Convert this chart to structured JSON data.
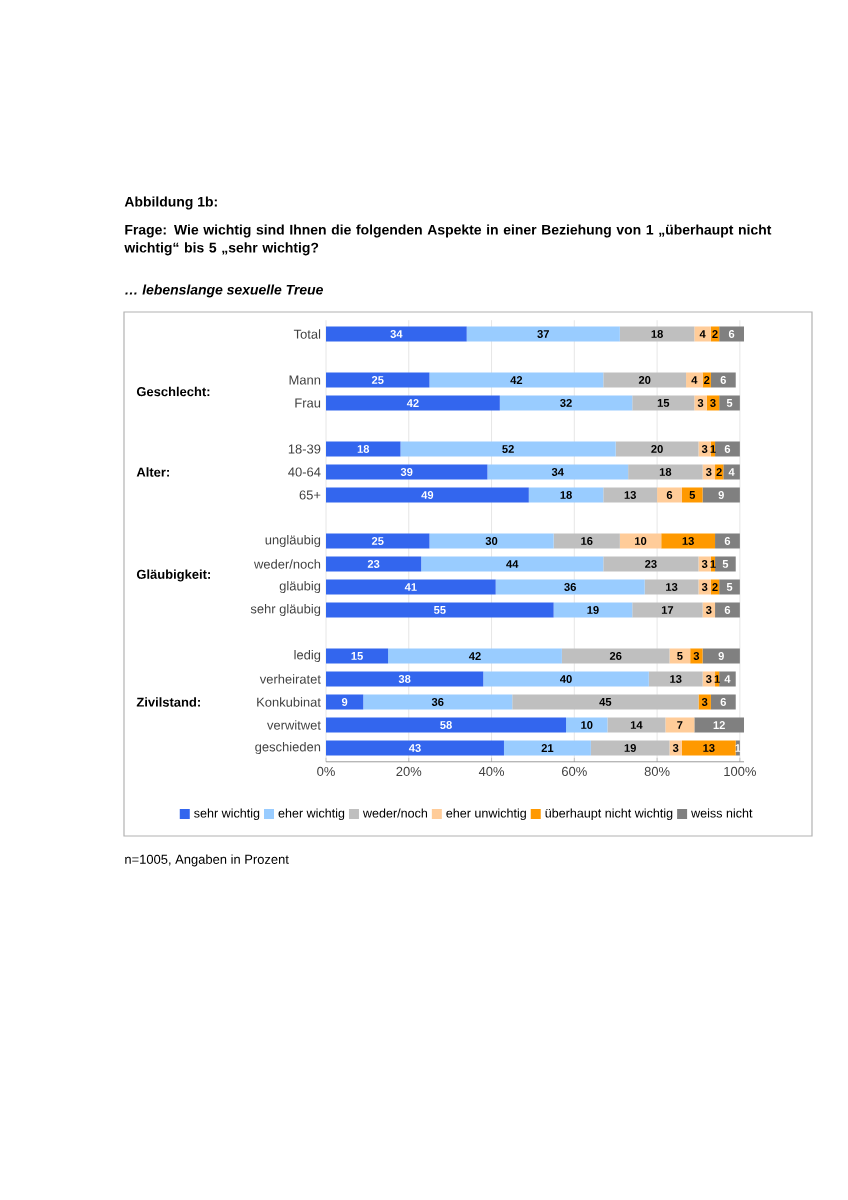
{
  "chart_data": {
    "type": "bar",
    "orientation": "horizontal",
    "stacked": true,
    "title": "Abbildung 1b:",
    "subtitle": "Frage: Wie wichtig sind Ihnen die folgenden Aspekte in einer Beziehung von 1 „überhaupt nicht wichtig“ bis 5 „sehr wichtig?",
    "annotations": [
      "… lebenslange sexuelle Treue",
      "Geschlecht:",
      "Alter:",
      "Gläubigkeit:",
      "Zivilstand:",
      "n=1005, Angaben in Prozent"
    ],
    "categories": [
      "Total",
      null,
      "Mann",
      "Frau",
      null,
      "18-39",
      "40-64",
      "65+",
      null,
      "ungläubig",
      "weder/noch",
      "gläubig",
      "sehr gläubig",
      null,
      "ledig",
      "verheiratet",
      "Konkubinat",
      "verwitwet",
      "geschieden"
    ],
    "series": [
      {
        "name": "sehr wichtig",
        "color": "#3366ee",
        "values": [
          34,
          null,
          25,
          42,
          null,
          18,
          39,
          49,
          null,
          25,
          23,
          41,
          55,
          null,
          15,
          38,
          9,
          58,
          43
        ]
      },
      {
        "name": "eher wichtig",
        "color": "#99ccff",
        "values": [
          37,
          null,
          42,
          32,
          null,
          52,
          34,
          18,
          null,
          30,
          44,
          36,
          19,
          null,
          42,
          40,
          36,
          10,
          21
        ]
      },
      {
        "name": "weder/noch",
        "color": "#bfbfbf",
        "values": [
          18,
          null,
          20,
          15,
          null,
          20,
          18,
          13,
          null,
          16,
          23,
          13,
          17,
          null,
          26,
          13,
          45,
          14,
          19
        ]
      },
      {
        "name": "eher unwichtig",
        "color": "#ffcc99",
        "values": [
          4,
          null,
          4,
          3,
          null,
          3,
          3,
          6,
          null,
          10,
          3,
          3,
          3,
          null,
          5,
          3,
          null,
          7,
          3
        ]
      },
      {
        "name": "überhaupt nicht wichtig",
        "color": "#ff9900",
        "values": [
          2,
          null,
          2,
          3,
          null,
          1,
          2,
          5,
          null,
          13,
          1,
          2,
          null,
          null,
          3,
          1,
          3,
          null,
          13
        ]
      },
      {
        "name": "weiss nicht",
        "color": "#808080",
        "values": [
          6,
          null,
          6,
          5,
          null,
          6,
          4,
          9,
          null,
          6,
          5,
          5,
          6,
          null,
          9,
          4,
          6,
          12,
          1
        ]
      }
    ],
    "data_labels": true,
    "xlim": [
      0,
      101
    ],
    "xticks": [
      {
        "value": 0,
        "label": "0%"
      },
      {
        "value": 20,
        "label": "20%"
      },
      {
        "value": 40,
        "label": "40%"
      },
      {
        "value": 60,
        "label": "60%"
      },
      {
        "value": 80,
        "label": "80%"
      },
      {
        "value": 100,
        "label": "100%"
      }
    ],
    "grid": "x",
    "legend": "bottom"
  }
}
